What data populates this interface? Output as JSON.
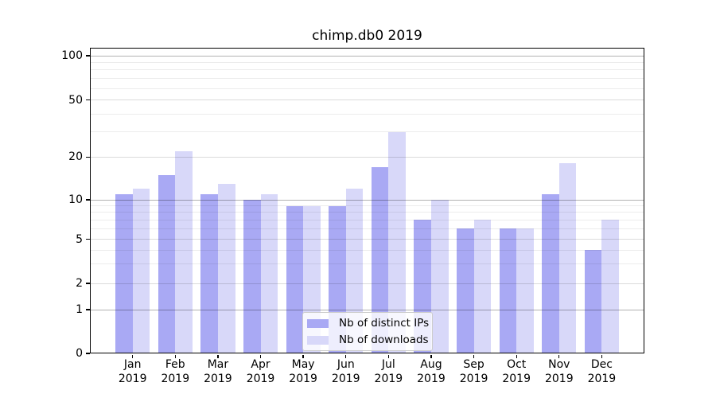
{
  "title": "chimp.db0 2019",
  "chart_data": {
    "type": "bar",
    "title": "chimp.db0 2019",
    "xlabel": "",
    "ylabel": "",
    "x_tick_labels": [
      "Jan\n2019",
      "Feb\n2019",
      "Mar\n2019",
      "Apr\n2019",
      "May\n2019",
      "Jun\n2019",
      "Jul\n2019",
      "Aug\n2019",
      "Sep\n2019",
      "Oct\n2019",
      "Nov\n2019",
      "Dec\n2019"
    ],
    "categories": [
      "Jan 2019",
      "Feb 2019",
      "Mar 2019",
      "Apr 2019",
      "May 2019",
      "Jun 2019",
      "Jul 2019",
      "Aug 2019",
      "Sep 2019",
      "Oct 2019",
      "Nov 2019",
      "Dec 2019"
    ],
    "series": [
      {
        "name": "Nb of distinct IPs",
        "color": "#a9a9f4",
        "values": [
          11,
          15,
          11,
          10,
          9,
          9,
          17,
          7,
          6,
          6,
          11,
          4
        ]
      },
      {
        "name": "Nb of downloads",
        "color": "#d8d8f9",
        "values": [
          12,
          22,
          13,
          11,
          9,
          12,
          30,
          10,
          7,
          6,
          18,
          7
        ]
      }
    ],
    "y_axis": {
      "scale": "symlog",
      "tick_values": [
        0,
        1,
        2,
        5,
        10,
        20,
        50,
        100
      ],
      "tick_labels": [
        "0",
        "1",
        "2",
        "5",
        "10",
        "20",
        "50",
        "100"
      ],
      "range_top": 116
    },
    "grid": "on",
    "legend_position": "lower center",
    "colors": {
      "major_grid": "#b3b3b3",
      "mid_grid": "#dbdbdb",
      "minor_grid": "#ececec",
      "spine": "#000000",
      "background": "#ffffff"
    }
  }
}
